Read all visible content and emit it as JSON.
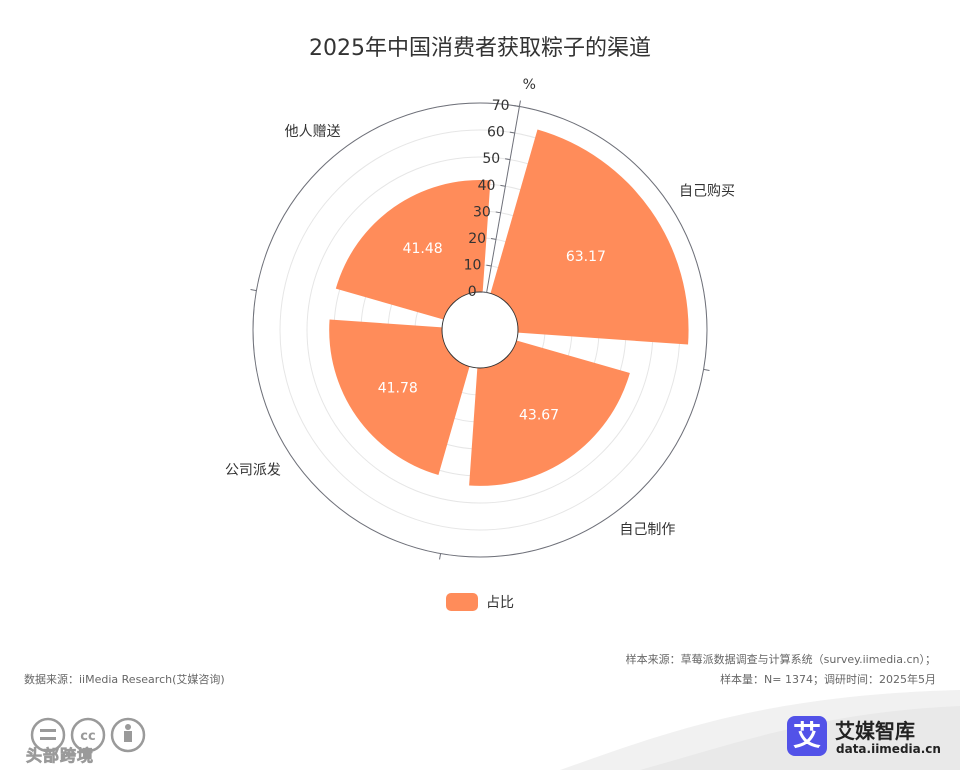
{
  "chart_data": {
    "type": "polar-bar",
    "title": "2025年中国消费者获取粽子的渠道",
    "radial_unit": "%",
    "radial_range": [
      0,
      70
    ],
    "radial_ticks": [
      "0",
      "10",
      "20",
      "30",
      "40",
      "50",
      "60",
      "70"
    ],
    "categories": [
      "自己购买",
      "自己制作",
      "公司派发",
      "他人赠送"
    ],
    "series": [
      {
        "name": "占比",
        "values": [
          63.17,
          43.67,
          41.78,
          41.48
        ]
      }
    ],
    "data_labels": [
      "63.17",
      "43.67",
      "41.78",
      "41.48"
    ],
    "legend_position": "bottom-center",
    "grid": true,
    "colors": {
      "bar": "#ff8c5a",
      "grid": "#e6e6e6",
      "axis": "#6e7079"
    }
  },
  "footer": {
    "source_left": "数据来源：iiMedia Research(艾媒咨询)",
    "sample_source": "样本来源：草莓派数据调查与计算系统（survey.iimedia.cn）；",
    "sample_size": "样本量：N= 1374；调研时间：2025年5月"
  },
  "branding": {
    "logo_glyph": "艾",
    "name": "艾媒智库",
    "url": "data.iimedia.cn",
    "logo_color": "#5252e8"
  },
  "watermark": {
    "text": "头部跨境",
    "icons": [
      "cc-equal-icon",
      "cc-cc-icon",
      "cc-by-icon"
    ]
  }
}
